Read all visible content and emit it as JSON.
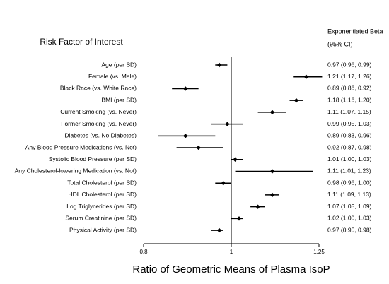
{
  "chart_data": {
    "type": "forest",
    "row_header": "Risk Factor of Interest",
    "estimate_header": "Exponentiated Beta",
    "estimate_subheader": "(95% CI)",
    "xlabel": "Ratio of Geometric Means of Plasma IsoP",
    "categories": [
      "Age (per SD)",
      "Female (vs. Male)",
      "Black Race (vs. White Race)",
      "BMI (per SD)",
      "Current Smoking (vs. Never)",
      "Former Smoking (vs. Never)",
      "Diabetes (vs. No Diabetes)",
      "Any Blood Pressure Medications (vs. Not)",
      "Systolic Blood Pressure (per SD)",
      "Any Cholesterol-lowering Medication (vs. Not)",
      "Total Cholesterol (per SD)",
      "HDL Cholesterol (per SD)",
      "Log Triglycerides (per SD)",
      "Serum Creatinine (per SD)",
      "Physical Activity (per SD)"
    ],
    "values": [
      0.97,
      1.21,
      0.89,
      1.18,
      1.11,
      0.99,
      0.89,
      0.92,
      1.01,
      1.11,
      0.98,
      1.11,
      1.07,
      1.02,
      0.97
    ],
    "lower": [
      0.96,
      1.17,
      0.86,
      1.16,
      1.07,
      0.95,
      0.83,
      0.87,
      1.0,
      1.01,
      0.96,
      1.09,
      1.05,
      1.0,
      0.95
    ],
    "upper": [
      0.99,
      1.26,
      0.92,
      1.2,
      1.15,
      1.03,
      0.96,
      0.98,
      1.03,
      1.23,
      1.0,
      1.13,
      1.09,
      1.03,
      0.98
    ],
    "value_labels": [
      "0.97 (0.96, 0.99)",
      "1.21 (1.17, 1.26)",
      "0.89 (0.86, 0.92)",
      "1.18 (1.16, 1.20)",
      "1.11 (1.07, 1.15)",
      "0.99 (0.95, 1.03)",
      "0.89 (0.83, 0.96)",
      "0.92 (0.87, 0.98)",
      "1.01 (1.00, 1.03)",
      "1.11 (1.01, 1.23)",
      "0.98 (0.96, 1.00)",
      "1.11 (1.09, 1.13)",
      "1.07 (1.05, 1.09)",
      "1.02 (1.00, 1.03)",
      "0.97 (0.95, 0.98)"
    ],
    "xlim": [
      0.8,
      1.25
    ],
    "xticks": [
      0.8,
      1,
      1.25
    ],
    "log_x": true,
    "reference_line": 1,
    "color": "#000000"
  }
}
